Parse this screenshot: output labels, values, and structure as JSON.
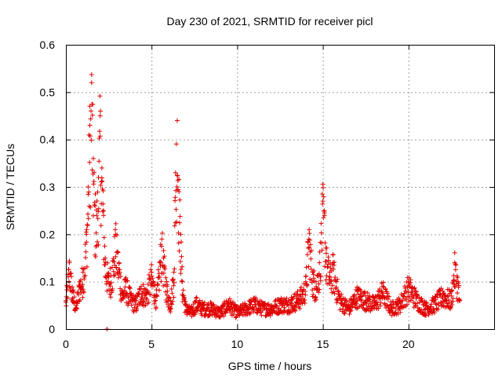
{
  "chart_data": {
    "type": "scatter",
    "title": "Day 230 of 2021, SRMTID for receiver picl",
    "xlabel": "GPS time / hours",
    "ylabel": "SRMTID / TECUs",
    "xlim": [
      0,
      25
    ],
    "ylim": [
      0,
      0.6
    ],
    "xticks": [
      0,
      5,
      10,
      15,
      20
    ],
    "xtick_labels": [
      "0",
      "5",
      "10",
      "15",
      "20"
    ],
    "yticks": [
      0,
      0.1,
      0.2,
      0.3,
      0.4,
      0.5,
      0.6
    ],
    "ytick_labels": [
      "0",
      "0.1",
      "0.2",
      "0.3",
      "0.4",
      "0.5",
      "0.6"
    ],
    "grid": true,
    "marker": "+",
    "color": "#e00000",
    "series": [
      {
        "name": "SRMTID",
        "x": [
          0.0,
          0.2,
          0.4,
          0.6,
          0.8,
          1.0,
          1.2,
          1.3,
          1.4,
          1.5,
          1.6,
          1.7,
          1.8,
          1.9,
          2.0,
          2.1,
          2.2,
          2.3,
          2.5,
          2.7,
          2.9,
          3.1,
          3.3,
          3.5,
          3.8,
          4.1,
          4.4,
          4.7,
          5.0,
          5.3,
          5.6,
          5.7,
          5.9,
          6.1,
          6.3,
          6.4,
          6.5,
          6.6,
          6.7,
          6.8,
          7.0,
          7.3,
          7.6,
          8.0,
          8.5,
          9.0,
          9.5,
          10.0,
          10.5,
          11.0,
          11.5,
          12.0,
          12.5,
          13.0,
          13.5,
          13.8,
          14.0,
          14.2,
          14.4,
          14.6,
          14.8,
          15.0,
          15.1,
          15.2,
          15.4,
          15.6,
          15.8,
          16.0,
          16.5,
          17.0,
          17.5,
          18.0,
          18.5,
          19.0,
          19.5,
          20.0,
          20.5,
          21.0,
          21.5,
          22.0,
          22.5,
          22.7,
          22.9,
          23.0
        ],
        "y": [
          0.06,
          0.14,
          0.08,
          0.05,
          0.1,
          0.12,
          0.2,
          0.3,
          0.43,
          0.52,
          0.36,
          0.26,
          0.24,
          0.32,
          0.45,
          0.34,
          0.25,
          0.15,
          0.11,
          0.13,
          0.2,
          0.14,
          0.08,
          0.1,
          0.07,
          0.06,
          0.09,
          0.08,
          0.12,
          0.07,
          0.19,
          0.15,
          0.09,
          0.06,
          0.12,
          0.33,
          0.44,
          0.29,
          0.2,
          0.1,
          0.05,
          0.04,
          0.06,
          0.05,
          0.05,
          0.04,
          0.06,
          0.04,
          0.05,
          0.06,
          0.05,
          0.05,
          0.06,
          0.06,
          0.07,
          0.08,
          0.1,
          0.21,
          0.12,
          0.1,
          0.14,
          0.27,
          0.24,
          0.16,
          0.12,
          0.14,
          0.1,
          0.07,
          0.05,
          0.08,
          0.07,
          0.06,
          0.09,
          0.05,
          0.06,
          0.1,
          0.07,
          0.05,
          0.06,
          0.08,
          0.07,
          0.14,
          0.1,
          0.06
        ],
        "outliers": [
          {
            "x": 2.4,
            "y": 0.0
          }
        ]
      }
    ]
  }
}
